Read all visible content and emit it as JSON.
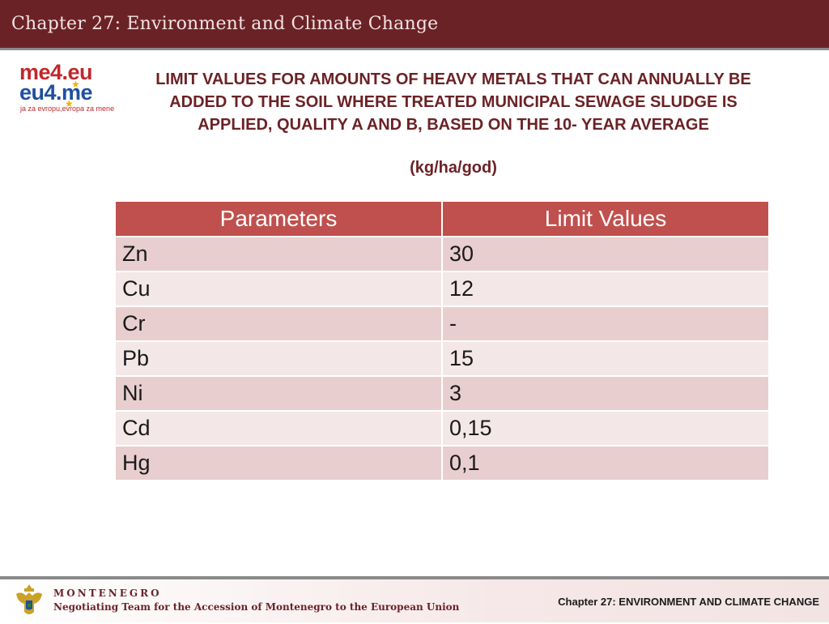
{
  "header": {
    "title": "Chapter 27: Environment and Climate Change"
  },
  "logo": {
    "line1": "me4.eu",
    "line2": "eu4.me",
    "tagline": "ja za evropu,evropa za mene",
    "icon": "me4eu-logo"
  },
  "main": {
    "heading_line1": "LIMIT VALUES FOR AMOUNTS OF HEAVY METALS THAT CAN ANNUALLY BE",
    "heading_line2": "ADDED TO THE SOIL WHERE  TREATED MUNICIPAL SEWAGE SLUDGE IS",
    "heading_line3": "APPLIED, QUALITY A AND B,  BASED ON  THE 10- YEAR AVERAGE",
    "units": "(kg/ha/god)"
  },
  "table": {
    "headers": [
      "Parameters",
      "Limit Values"
    ],
    "rows": [
      [
        "Zn",
        "30"
      ],
      [
        "Cu",
        "12"
      ],
      [
        "Cr",
        "-"
      ],
      [
        "Pb",
        "15"
      ],
      [
        "Ni",
        "3"
      ],
      [
        "Cd",
        "0,15"
      ],
      [
        "Hg",
        "0,1"
      ]
    ]
  },
  "footer": {
    "country": "MONTENEGRO",
    "team": "Negotiating Team for the Accession of  Montenegro to the European Union",
    "chapter": "Chapter 27:  ENVIRONMENT AND CLIMATE CHANGE",
    "crest_icon": "montenegro-crest-icon"
  },
  "colors": {
    "header_bg": "#6b2226",
    "table_header": "#c0504d",
    "row_odd": "#e8cece",
    "row_even": "#f4e7e7",
    "heading_text": "#6b2226"
  }
}
